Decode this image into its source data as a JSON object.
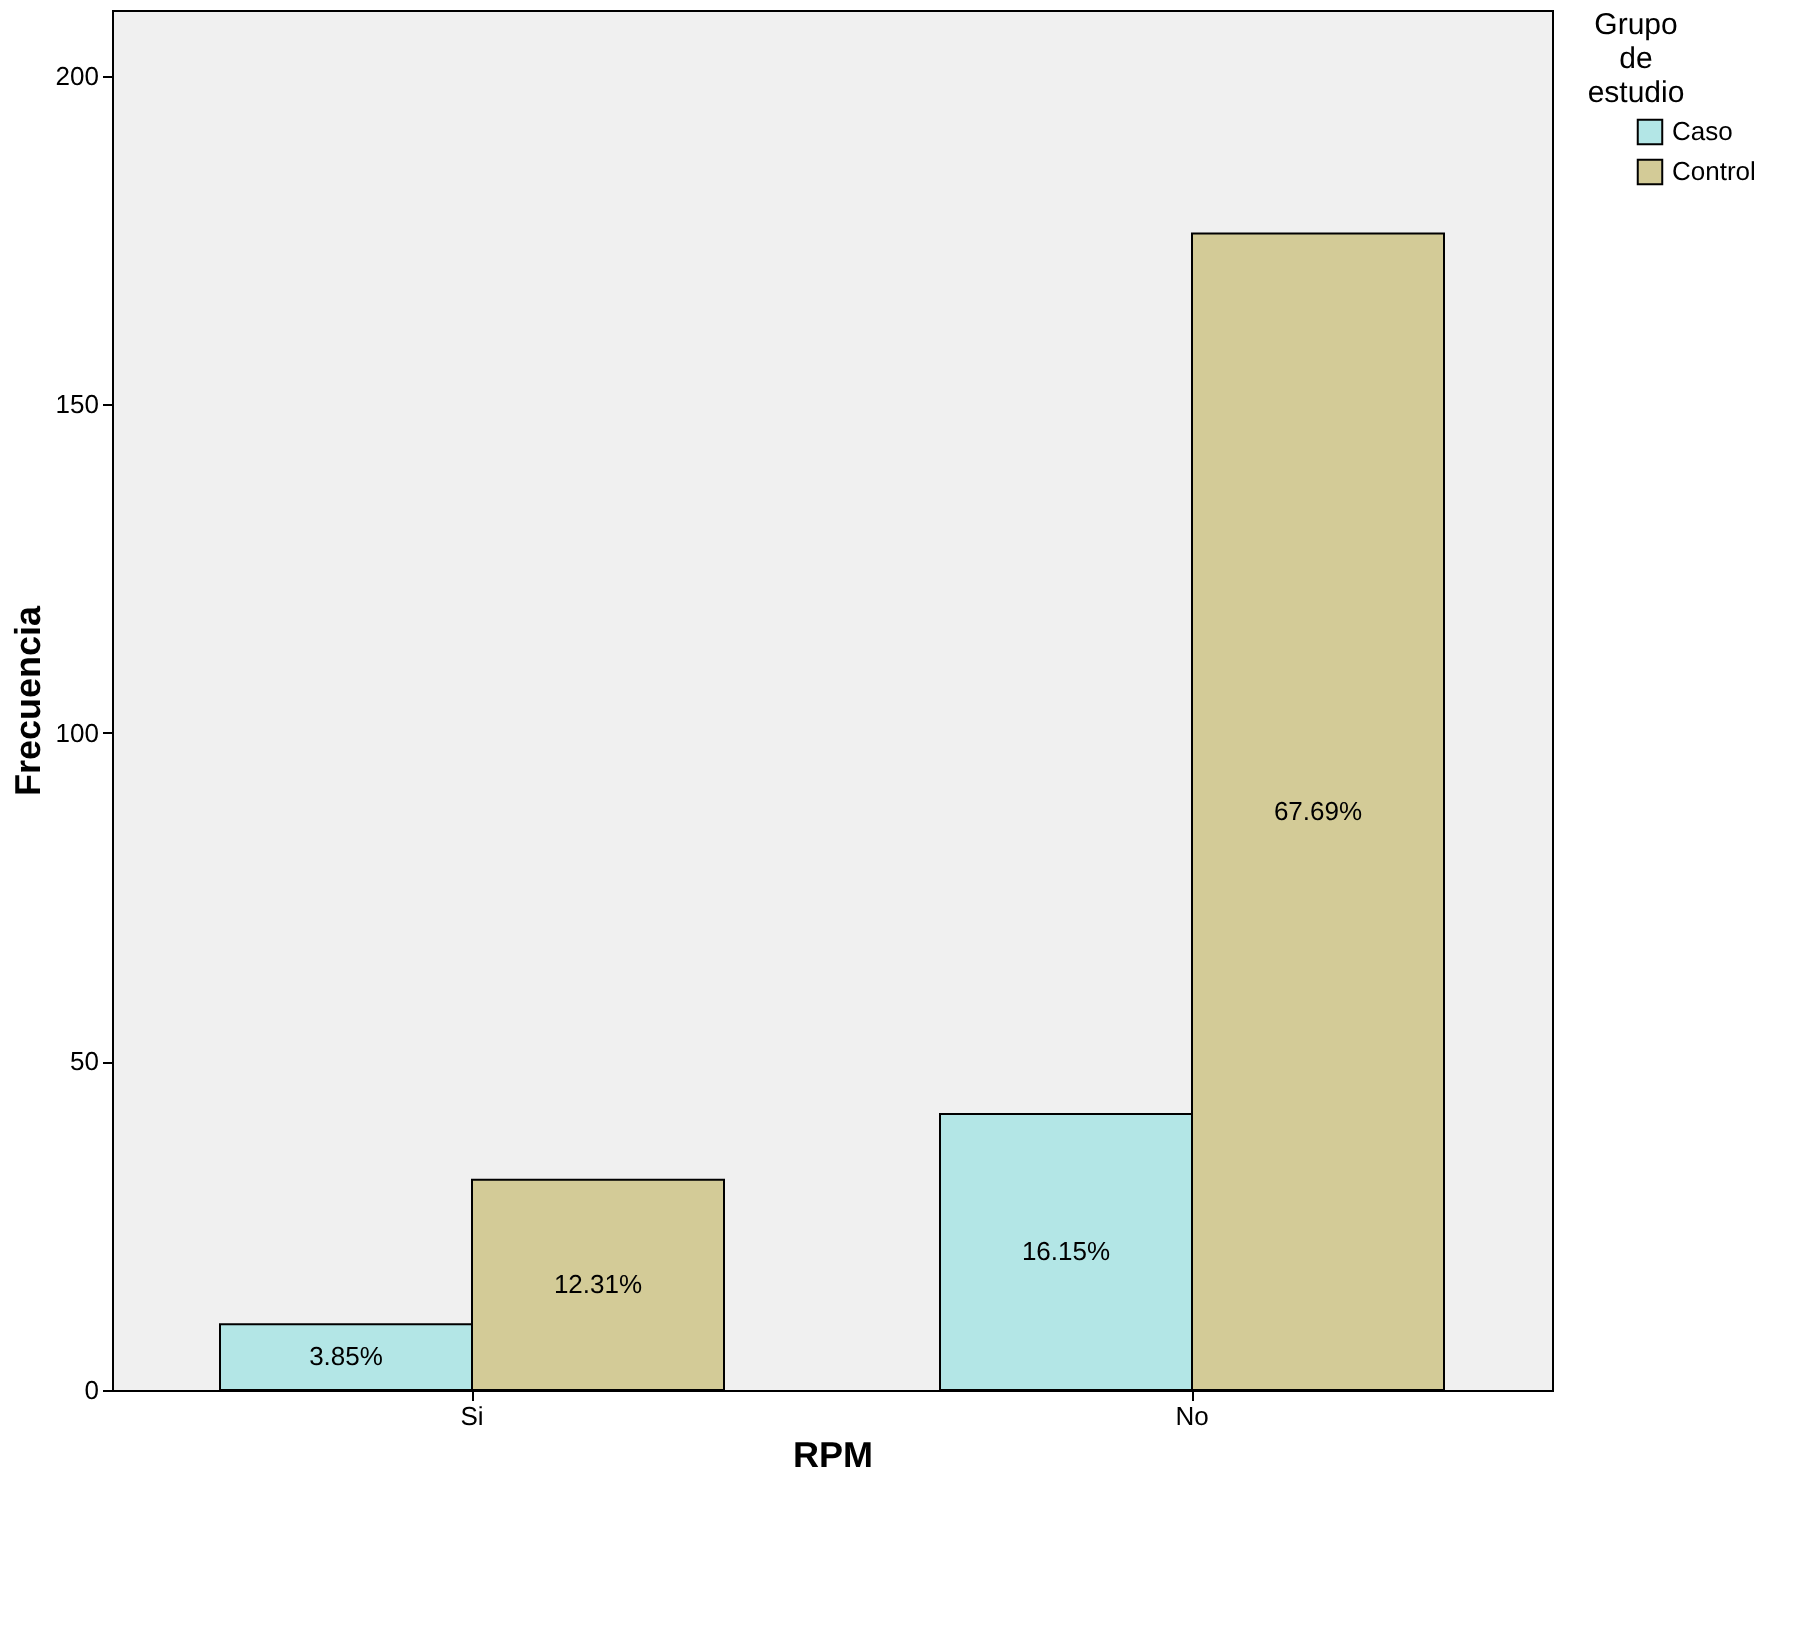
{
  "chart_data": {
    "type": "bar",
    "xlabel": "RPM",
    "ylabel": "Frecuencia",
    "legend_title": "Grupo de estudio",
    "categories": [
      "Si",
      "No"
    ],
    "series": [
      {
        "name": "Caso",
        "color": "#b3e6e6",
        "values": [
          10,
          42
        ]
      },
      {
        "name": "Control",
        "color": "#d3cb97",
        "values": [
          32,
          176
        ]
      }
    ],
    "annotations": [
      "3.85%",
      "16.15%",
      "12.31%",
      "67.69%"
    ],
    "ylim": [
      0,
      210
    ],
    "yticks": [
      0,
      50,
      100,
      150,
      200
    ],
    "grid": false,
    "legend": "top right"
  }
}
